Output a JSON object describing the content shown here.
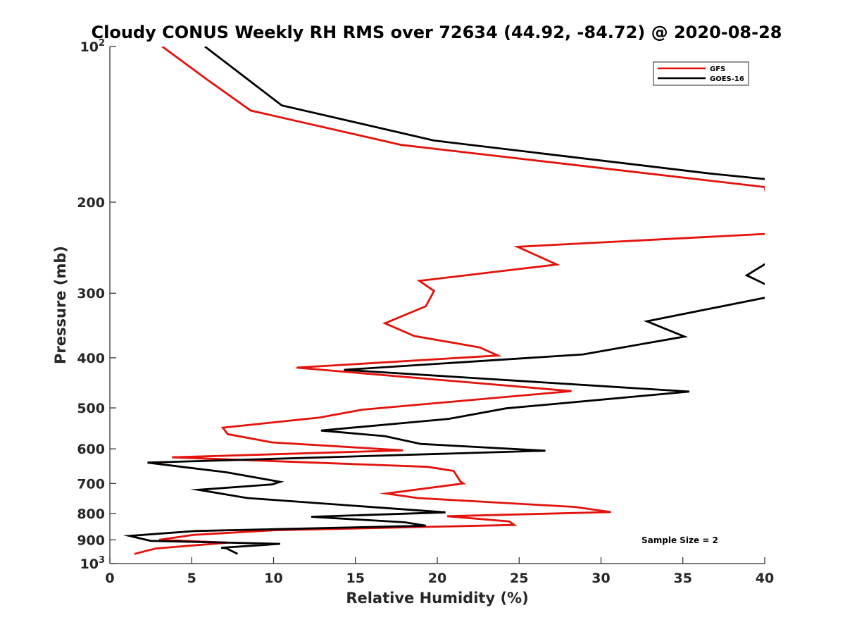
{
  "chart_data": {
    "type": "line",
    "title": "Cloudy CONUS Weekly RH RMS over 72634 (44.92, -84.72) @ 2020-08-28",
    "xlabel": "Relative Humidity (%)",
    "ylabel": "Pressure (mb)",
    "xlim": [
      0,
      40
    ],
    "ylim": [
      100,
      1000
    ],
    "y_scale": "log",
    "y_reversed": true,
    "grid": false,
    "legend_position": "top-right",
    "x_ticks": [
      "0",
      "5",
      "10",
      "15",
      "20",
      "25",
      "30",
      "35",
      "40"
    ],
    "y_ticks": [
      {
        "value": 100,
        "base": "10",
        "exp": "2"
      },
      {
        "value": 200,
        "label": "200"
      },
      {
        "value": 300,
        "label": "300"
      },
      {
        "value": 400,
        "label": "400"
      },
      {
        "value": 500,
        "label": "500"
      },
      {
        "value": 600,
        "label": "600"
      },
      {
        "value": 700,
        "label": "700"
      },
      {
        "value": 800,
        "label": "800"
      },
      {
        "value": 900,
        "label": "900"
      },
      {
        "value": 1000,
        "base": "10",
        "exp": "3"
      }
    ],
    "annotation": "Sample Size = 2",
    "series": [
      {
        "name": "GFS",
        "color": "#e3120b",
        "points": [
          [
            3.2,
            100
          ],
          [
            5.8,
            115
          ],
          [
            8.6,
            133
          ],
          [
            17.8,
            155
          ],
          [
            40,
            187
          ],
          [
            40.5,
            230
          ],
          [
            24.9,
            244
          ],
          [
            27.3,
            264
          ],
          [
            18.9,
            284
          ],
          [
            19.8,
            297
          ],
          [
            19.3,
            318
          ],
          [
            16.8,
            343
          ],
          [
            18.6,
            363
          ],
          [
            22.6,
            382
          ],
          [
            23.7,
            396
          ],
          [
            11.4,
            418
          ],
          [
            28.2,
            464
          ],
          [
            15.4,
            504
          ],
          [
            12.8,
            522
          ],
          [
            6.9,
            546
          ],
          [
            7.2,
            562
          ],
          [
            9.9,
            583
          ],
          [
            17.9,
            604
          ],
          [
            3.8,
            623
          ],
          [
            19.4,
            650
          ],
          [
            21.0,
            662
          ],
          [
            21.4,
            693
          ],
          [
            21.6,
            700
          ],
          [
            16.9,
            732
          ],
          [
            18.8,
            747
          ],
          [
            28.4,
            777
          ],
          [
            30.6,
            795
          ],
          [
            20.6,
            810
          ],
          [
            24.4,
            829
          ],
          [
            24.7,
            842
          ],
          [
            10.0,
            862
          ],
          [
            5.1,
            880
          ],
          [
            3.0,
            900
          ],
          [
            7.2,
            911
          ],
          [
            2.8,
            935
          ],
          [
            1.5,
            958
          ]
        ]
      },
      {
        "name": "GOES-16",
        "color": "#000000",
        "points": [
          [
            5.8,
            100
          ],
          [
            10.5,
            130
          ],
          [
            19.8,
            152
          ],
          [
            36.6,
            176
          ],
          [
            40.4,
            181
          ],
          [
            40.5,
            258
          ],
          [
            38.9,
            277
          ],
          [
            40.5,
            293
          ],
          [
            40.5,
            304
          ],
          [
            32.8,
            340
          ],
          [
            35.1,
            364
          ],
          [
            28.9,
            394
          ],
          [
            14.3,
            422
          ],
          [
            35.4,
            465
          ],
          [
            24.2,
            501
          ],
          [
            20.7,
            525
          ],
          [
            12.9,
            553
          ],
          [
            16.8,
            567
          ],
          [
            19.0,
            587
          ],
          [
            26.6,
            605
          ],
          [
            2.3,
            638
          ],
          [
            7.1,
            666
          ],
          [
            10.4,
            695
          ],
          [
            9.9,
            703
          ],
          [
            5.4,
            720
          ],
          [
            8.4,
            747
          ],
          [
            20.5,
            796
          ],
          [
            12.3,
            812
          ],
          [
            18.0,
            832
          ],
          [
            19.3,
            845
          ],
          [
            5.2,
            865
          ],
          [
            1.2,
            884
          ],
          [
            2.5,
            904
          ],
          [
            10.4,
            916
          ],
          [
            6.8,
            932
          ],
          [
            7.1,
            934
          ],
          [
            7.8,
            958
          ]
        ]
      }
    ]
  }
}
